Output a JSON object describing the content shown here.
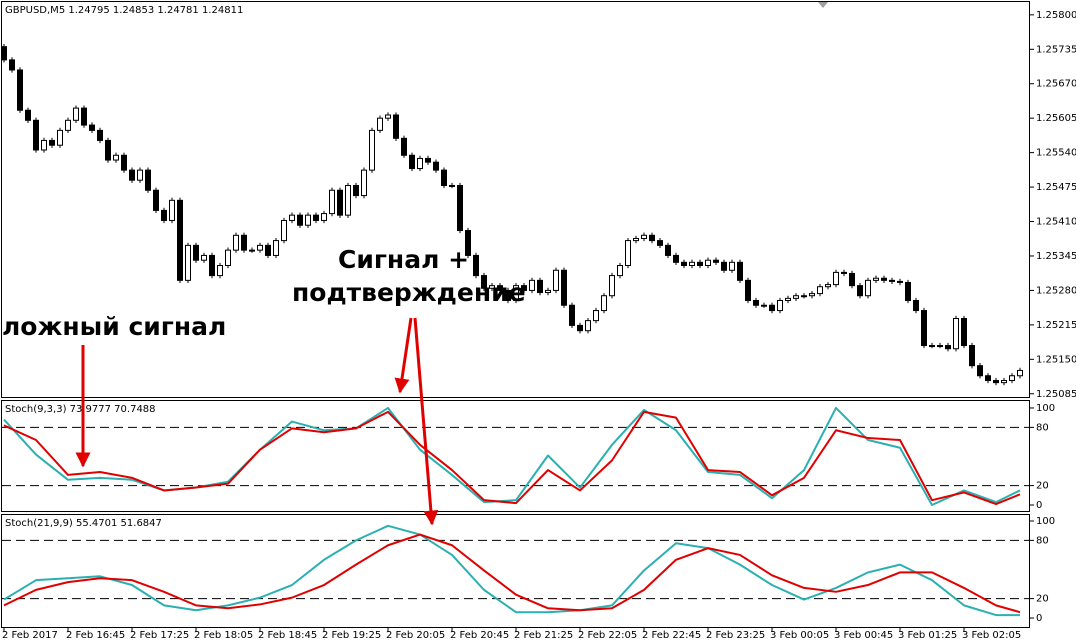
{
  "chart_data": [
    {
      "type": "candlestick",
      "title": "GBPUSD,M5  1.24795 1.24853 1.24781 1.24811",
      "annotations": [
        "ложный сигнал",
        "Сигнал +",
        "подтверждение"
      ],
      "categories": [
        "2 Feb 2017",
        null,
        null,
        null,
        null,
        null,
        null,
        null,
        "2 Feb 16:45",
        null,
        null,
        null,
        null,
        null,
        null,
        null,
        "2 Feb 17:25",
        null,
        null,
        null,
        null,
        null,
        null,
        null,
        "2 Feb 18:05",
        null,
        null,
        null,
        null,
        null,
        null,
        null,
        "2 Feb 18:45",
        null,
        null,
        null,
        null,
        null,
        null,
        null,
        "2 Feb 19:25",
        null,
        null,
        null,
        null,
        null,
        null,
        null,
        "2 Feb 20:05",
        null,
        null,
        null,
        null,
        null,
        null,
        null,
        "2 Feb 20:45",
        null,
        null,
        null,
        null,
        null,
        null,
        null,
        "2 Feb 21:25",
        null,
        null,
        null,
        null,
        null,
        null,
        null,
        "2 Feb 22:05",
        null,
        null,
        null,
        null,
        null,
        null,
        null,
        "2 Feb 22:45",
        null,
        null,
        null,
        null,
        null,
        null,
        null,
        "2 Feb 23:25",
        null,
        null,
        null,
        null,
        null,
        null,
        null,
        "3 Feb 00:05",
        null,
        null,
        null,
        null,
        null,
        null,
        null,
        "3 Feb 00:45",
        null,
        null,
        null,
        null,
        null,
        null,
        null,
        "3 Feb 01:25",
        null,
        null,
        null,
        null,
        null,
        null,
        null,
        "3 Feb 02:05",
        null,
        null,
        null,
        null,
        null,
        null,
        null
      ],
      "open": [
        1.2574,
        1.25715,
        1.25696,
        1.2562,
        1.25601,
        1.25545,
        1.25563,
        1.25554,
        1.25582,
        1.25601,
        1.25624,
        1.25592,
        1.25582,
        1.25563,
        1.25526,
        1.25535,
        1.25507,
        1.25488,
        1.25507,
        1.25469,
        1.25431,
        1.25412,
        1.2545,
        1.25299,
        1.25365,
        1.25337,
        1.25346,
        1.25308,
        1.25327,
        1.25356,
        1.25384,
        1.25356,
        1.25356,
        1.25365,
        1.25346,
        1.25374,
        1.25412,
        1.25422,
        1.25403,
        1.25422,
        1.25412,
        1.25425,
        1.25469,
        1.25422,
        1.25478,
        1.25459,
        1.25507,
        1.25582,
        1.25605,
        1.25611,
        1.25567,
        1.25535,
        1.2551,
        1.25529,
        1.25522,
        1.25507,
        1.25478,
        1.25478,
        1.25393,
        1.25346,
        1.25308,
        1.25284,
        1.25289,
        1.2528,
        1.25261,
        1.25289,
        1.2528,
        1.25299,
        1.25276,
        1.2528,
        1.25318,
        1.25252,
        1.25214,
        1.25204,
        1.25223,
        1.25242,
        1.2527,
        1.25308,
        1.25327,
        1.25374,
        1.25378,
        1.25384,
        1.25374,
        1.25365,
        1.25346,
        1.25333,
        1.25327,
        1.25333,
        1.25327,
        1.25337,
        1.25333,
        1.25318,
        1.25333,
        1.25299,
        1.25261,
        1.25252,
        1.25252,
        1.25242,
        1.25261,
        1.25265,
        1.2527,
        1.2527,
        1.25274,
        1.25287,
        1.25291,
        1.25314,
        1.25312,
        1.25289,
        1.2527,
        1.25299,
        1.25303,
        1.25299,
        1.25297,
        1.25295,
        1.25261,
        1.25242,
        1.25176,
        1.25176,
        1.25176,
        1.2517,
        1.25227,
        1.25176,
        1.25138,
        1.25119,
        1.2511,
        1.25106,
        1.2511,
        1.25119
      ],
      "high": [
        1.25745,
        1.2572,
        1.25701,
        1.25625,
        1.25606,
        1.25568,
        1.25568,
        1.25587,
        1.25606,
        1.25629,
        1.25629,
        1.25597,
        1.25587,
        1.25568,
        1.2554,
        1.2554,
        1.25512,
        1.25512,
        1.25512,
        1.25474,
        1.25436,
        1.25455,
        1.25455,
        1.2537,
        1.2537,
        1.25351,
        1.25351,
        1.25332,
        1.25361,
        1.25389,
        1.25389,
        1.25361,
        1.2537,
        1.2537,
        1.25379,
        1.25417,
        1.25427,
        1.25427,
        1.25427,
        1.25427,
        1.2543,
        1.25474,
        1.25474,
        1.25483,
        1.25483,
        1.25512,
        1.25587,
        1.2561,
        1.25616,
        1.25616,
        1.25572,
        1.2554,
        1.25534,
        1.25534,
        1.25527,
        1.25512,
        1.25483,
        1.25483,
        1.25398,
        1.25351,
        1.25313,
        1.25294,
        1.25294,
        1.25285,
        1.25294,
        1.25294,
        1.25304,
        1.25304,
        1.25285,
        1.25323,
        1.25323,
        1.25257,
        1.25219,
        1.25228,
        1.25247,
        1.25275,
        1.25313,
        1.25332,
        1.25379,
        1.25383,
        1.25389,
        1.25389,
        1.25379,
        1.2537,
        1.25351,
        1.25338,
        1.25338,
        1.25338,
        1.25342,
        1.25342,
        1.25338,
        1.25338,
        1.25338,
        1.25304,
        1.25266,
        1.25257,
        1.25257,
        1.25266,
        1.2527,
        1.25275,
        1.25275,
        1.25279,
        1.25292,
        1.25296,
        1.25319,
        1.25319,
        1.25317,
        1.25294,
        1.25304,
        1.25308,
        1.25308,
        1.25304,
        1.25302,
        1.253,
        1.25266,
        1.25247,
        1.25181,
        1.25181,
        1.25181,
        1.25232,
        1.25232,
        1.25181,
        1.25143,
        1.25124,
        1.25115,
        1.25115,
        1.25124,
        1.25134
      ],
      "low": [
        1.2571,
        1.25691,
        1.25615,
        1.25596,
        1.2554,
        1.2554,
        1.25549,
        1.25549,
        1.25577,
        1.25596,
        1.25587,
        1.25577,
        1.25558,
        1.25521,
        1.25521,
        1.25502,
        1.25483,
        1.25483,
        1.25464,
        1.25426,
        1.25407,
        1.25407,
        1.25294,
        1.25294,
        1.25332,
        1.25332,
        1.25303,
        1.25303,
        1.25322,
        1.25351,
        1.25351,
        1.25351,
        1.25351,
        1.25341,
        1.25341,
        1.25369,
        1.25407,
        1.25398,
        1.25398,
        1.25407,
        1.25407,
        1.2542,
        1.25417,
        1.25417,
        1.25454,
        1.25454,
        1.25502,
        1.25577,
        1.256,
        1.25562,
        1.2553,
        1.25505,
        1.25505,
        1.25517,
        1.25502,
        1.25473,
        1.25473,
        1.25388,
        1.25341,
        1.25303,
        1.25279,
        1.25279,
        1.25275,
        1.25256,
        1.25256,
        1.25275,
        1.25275,
        1.25271,
        1.25271,
        1.25275,
        1.25247,
        1.25209,
        1.25199,
        1.25199,
        1.25218,
        1.25237,
        1.25265,
        1.25303,
        1.25322,
        1.25369,
        1.25373,
        1.25369,
        1.2536,
        1.25341,
        1.25328,
        1.25322,
        1.25322,
        1.25322,
        1.25322,
        1.25328,
        1.25313,
        1.25313,
        1.25294,
        1.25256,
        1.25247,
        1.25247,
        1.25237,
        1.25237,
        1.25256,
        1.2526,
        1.25265,
        1.25265,
        1.25269,
        1.25282,
        1.25286,
        1.25307,
        1.25284,
        1.25265,
        1.25265,
        1.25294,
        1.25294,
        1.25292,
        1.2529,
        1.25256,
        1.25237,
        1.25171,
        1.25171,
        1.25171,
        1.25165,
        1.25165,
        1.25171,
        1.25133,
        1.25114,
        1.25105,
        1.25101,
        1.25101,
        1.25105,
        1.25114
      ],
      "close": [
        1.25715,
        1.25696,
        1.2562,
        1.25601,
        1.25545,
        1.25563,
        1.25554,
        1.25582,
        1.25601,
        1.25624,
        1.25592,
        1.25582,
        1.25563,
        1.25526,
        1.25535,
        1.25507,
        1.25488,
        1.25507,
        1.25469,
        1.25431,
        1.25412,
        1.2545,
        1.25299,
        1.25365,
        1.25337,
        1.25346,
        1.25308,
        1.25327,
        1.25356,
        1.25384,
        1.25356,
        1.25356,
        1.25365,
        1.25346,
        1.25374,
        1.25412,
        1.25422,
        1.25403,
        1.25422,
        1.25412,
        1.25425,
        1.25469,
        1.25422,
        1.25478,
        1.25459,
        1.25507,
        1.25582,
        1.25605,
        1.25611,
        1.25567,
        1.25535,
        1.2551,
        1.25529,
        1.25522,
        1.25507,
        1.25478,
        1.25478,
        1.25393,
        1.25346,
        1.25308,
        1.25284,
        1.25289,
        1.2528,
        1.25261,
        1.25289,
        1.2528,
        1.25299,
        1.25276,
        1.2528,
        1.25318,
        1.25252,
        1.25214,
        1.25204,
        1.25223,
        1.25242,
        1.2527,
        1.25308,
        1.25327,
        1.25374,
        1.25378,
        1.25384,
        1.25374,
        1.25365,
        1.25346,
        1.25333,
        1.25327,
        1.25333,
        1.25327,
        1.25337,
        1.25333,
        1.25318,
        1.25333,
        1.25299,
        1.25261,
        1.25252,
        1.25252,
        1.25242,
        1.25261,
        1.25265,
        1.2527,
        1.2527,
        1.25274,
        1.25287,
        1.25291,
        1.25314,
        1.25312,
        1.25289,
        1.2527,
        1.25299,
        1.25303,
        1.25299,
        1.25297,
        1.25295,
        1.25261,
        1.25242,
        1.25176,
        1.25176,
        1.25176,
        1.2517,
        1.25227,
        1.25176,
        1.25138,
        1.25119,
        1.2511,
        1.25106,
        1.2511,
        1.25119,
        1.25129
      ],
      "ylim": [
        1.25077,
        1.25828
      ],
      "yticks": [
        {
          "value": 1.258,
          "label": "1.25800"
        },
        1.25735,
        {
          "value": 1.2567,
          "label": "1.25670"
        },
        1.25605,
        {
          "value": 1.2554,
          "label": "1.25540"
        },
        1.25475,
        {
          "value": 1.2541,
          "label": "1.25410"
        },
        1.25345,
        {
          "value": 1.2528,
          "label": "1.25280"
        },
        1.25215,
        {
          "value": 1.2515,
          "label": "1.25150"
        },
        1.25085
      ],
      "bull_color": "#ffffff",
      "bear_color": "#000000"
    },
    {
      "type": "line",
      "title": "Stoch(9,3,3) 73.9777 70.7488",
      "x": [
        0,
        4,
        8,
        12,
        16,
        20,
        24,
        28,
        32,
        36,
        40,
        44,
        48,
        52,
        56,
        60,
        64,
        68,
        72,
        76,
        80,
        84,
        88,
        92,
        96,
        100,
        104,
        108,
        112,
        116,
        120,
        124,
        127
      ],
      "series": [
        {
          "color": "#2ab0b0",
          "values": [
            88,
            52,
            26,
            28,
            26,
            15,
            18,
            24,
            57,
            86,
            77,
            79,
            100,
            57,
            31,
            3,
            5,
            51,
            18,
            62,
            98,
            77,
            34,
            31,
            7,
            36,
            100,
            67,
            59,
            0,
            15,
            3,
            15
          ]
        },
        {
          "color": "#e00000",
          "values": [
            82,
            67,
            31,
            34,
            28,
            15,
            18,
            22,
            57,
            79,
            75,
            79,
            96,
            62,
            36,
            5,
            2,
            36,
            15,
            46,
            96,
            90,
            36,
            34,
            10,
            28,
            77,
            69,
            67,
            5,
            13,
            1,
            11
          ]
        }
      ],
      "xlim": [
        -0.5,
        128.25
      ],
      "ylim": [
        -7.2,
        108.2
      ],
      "yticks": [
        100,
        80,
        20,
        0
      ],
      "levels": [
        20,
        80
      ]
    },
    {
      "type": "line",
      "title": "Stoch(21,9,9) 55.4701 51.6847",
      "x": [
        0,
        4,
        8,
        12,
        16,
        20,
        24,
        28,
        32,
        36,
        40,
        44,
        48,
        52,
        56,
        60,
        64,
        68,
        72,
        76,
        80,
        84,
        88,
        92,
        96,
        100,
        104,
        108,
        112,
        116,
        120,
        124,
        127
      ],
      "series": [
        {
          "color": "#2ab0b0",
          "values": [
            19,
            39,
            41,
            43,
            34,
            13,
            8,
            13,
            21,
            34,
            60,
            80,
            95,
            86,
            65,
            29,
            6,
            6,
            8,
            13,
            49,
            77,
            72,
            55,
            34,
            19,
            31,
            47,
            55,
            39,
            13,
            3,
            3
          ]
        },
        {
          "color": "#e00000",
          "values": [
            13,
            29,
            37,
            41,
            39,
            27,
            13,
            10,
            14,
            21,
            34,
            55,
            75,
            86,
            75,
            49,
            24,
            10,
            8,
            10,
            29,
            60,
            72,
            65,
            44,
            31,
            27,
            34,
            47,
            47,
            31,
            13,
            6
          ]
        }
      ],
      "xlim": [
        -0.5,
        128.25
      ],
      "ylim": [
        -10.3,
        107.2
      ],
      "yticks": [
        100,
        80,
        20,
        0
      ],
      "levels": [
        20,
        80
      ]
    }
  ]
}
